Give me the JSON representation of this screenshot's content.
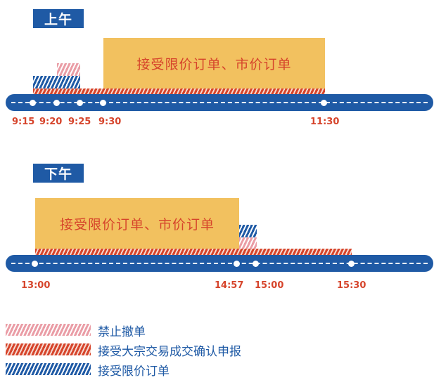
{
  "morning": {
    "label": "上午",
    "box_text": "接受限价订单、市价订单",
    "times": [
      "9:15",
      "9:20",
      "9:25",
      "9:30",
      "11:30"
    ]
  },
  "afternoon": {
    "label": "下午",
    "box_text": "接受限价订单、市价订单",
    "times": [
      "13:00",
      "14:57",
      "15:00",
      "15:30"
    ]
  },
  "legend": [
    {
      "name": "pink-stripe",
      "label": "禁止撤单"
    },
    {
      "name": "red-stripe",
      "label": "接受大宗交易成交确认申报"
    },
    {
      "name": "blue-stripe",
      "label": "接受限价订单"
    }
  ],
  "colors": {
    "blue": "#1f5aa5",
    "red": "#d6442b",
    "pink": "#ea9da6",
    "orange": "#f2c15f"
  }
}
